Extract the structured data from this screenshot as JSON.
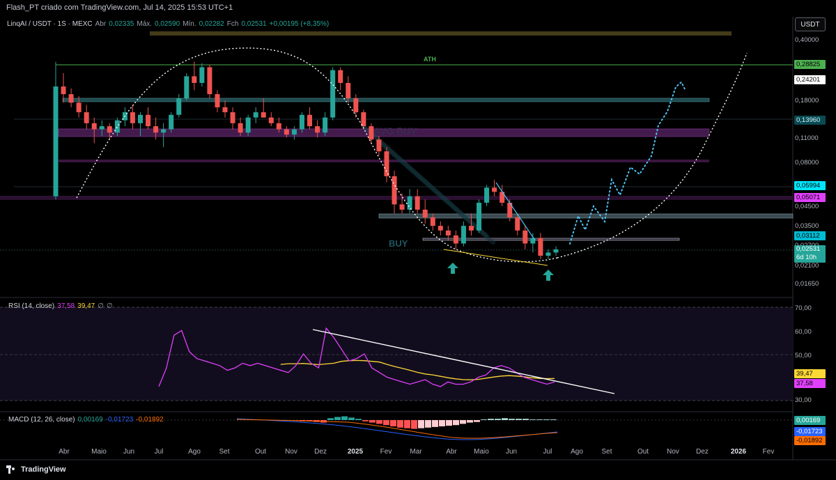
{
  "header": {
    "title": "Flash_PT criado com TradingView.com, Jul 14, 2025 15:53 UTC+1"
  },
  "legend": {
    "symbol": "LinqAI / USDT · 1S · MEXC",
    "open_label": "Abr",
    "open_value": "0,02335",
    "high_label": "Máx.",
    "high_value": "0,02590",
    "low_label": "Mín.",
    "low_value": "0,02282",
    "close_label": "Fch",
    "close_value": "0,02531",
    "change": "+0,00195 (+8,35%)"
  },
  "currency_button": "USDT",
  "price_axis": [
    "0,40000",
    "0,18000",
    "0,11000",
    "0,08000",
    "0,04500",
    "0,03500",
    "0,02700",
    "0,02100",
    "0,01650"
  ],
  "price_tags": {
    "ath": "0,28825",
    "t1": "0,24201",
    "t2": "0,13960",
    "t3": "0,05994",
    "t4": "0,05071",
    "t5": "0,03112",
    "current": "0,02531",
    "countdown": "6d 10h"
  },
  "annotations": {
    "ath": "ATH",
    "buy": "BUY",
    "avg_buy": "AVG BUY"
  },
  "rsi": {
    "label": "RSI (14, close)",
    "v1": "37,58",
    "v2": "39,47",
    "v3": "∅",
    "v4": "∅",
    "axis": [
      "70,00",
      "60,00",
      "50,00",
      "30,00"
    ],
    "tag_ma": "39,47",
    "tag_rsi": "37,58"
  },
  "macd": {
    "label": "MACD (12, 26, close)",
    "hist": "0,00169",
    "macd": "-0,01723",
    "signal": "-0,01892",
    "tag_hist": "0,00169",
    "tag_macd": "-0,01723",
    "tag_signal": "-0,01892"
  },
  "time_axis": [
    "Abr",
    "Maio",
    "Jun",
    "Jul",
    "Ago",
    "Set",
    "Out",
    "Nov",
    "Dez",
    "2025",
    "Fev",
    "Mar",
    "Abr",
    "Maio",
    "Jun",
    "Jul",
    "Ago",
    "Set",
    "Out",
    "Nov",
    "Dez",
    "2026",
    "Fev"
  ],
  "footer": {
    "brand": "TradingView"
  },
  "colors": {
    "up": "#26a69a",
    "down": "#ef5350",
    "rsi": "#e040fb",
    "rsi_ma": "#fdd835",
    "macd": "#2962ff",
    "signal": "#ff6d00",
    "ath_line": "#4caf50"
  },
  "candles": [
    {
      "o": 0.05,
      "h": 0.29,
      "l": 0.048,
      "c": 0.21
    },
    {
      "o": 0.21,
      "h": 0.25,
      "l": 0.17,
      "c": 0.19
    },
    {
      "o": 0.19,
      "h": 0.205,
      "l": 0.16,
      "c": 0.17
    },
    {
      "o": 0.17,
      "h": 0.185,
      "l": 0.14,
      "c": 0.15
    },
    {
      "o": 0.15,
      "h": 0.165,
      "l": 0.12,
      "c": 0.13
    },
    {
      "o": 0.13,
      "h": 0.14,
      "l": 0.1,
      "c": 0.12
    },
    {
      "o": 0.12,
      "h": 0.135,
      "l": 0.11,
      "c": 0.125
    },
    {
      "o": 0.125,
      "h": 0.13,
      "l": 0.105,
      "c": 0.115
    },
    {
      "o": 0.115,
      "h": 0.14,
      "l": 0.11,
      "c": 0.135
    },
    {
      "o": 0.135,
      "h": 0.16,
      "l": 0.125,
      "c": 0.15
    },
    {
      "o": 0.15,
      "h": 0.165,
      "l": 0.12,
      "c": 0.13
    },
    {
      "o": 0.13,
      "h": 0.15,
      "l": 0.11,
      "c": 0.145
    },
    {
      "o": 0.145,
      "h": 0.16,
      "l": 0.12,
      "c": 0.125
    },
    {
      "o": 0.125,
      "h": 0.14,
      "l": 0.105,
      "c": 0.115
    },
    {
      "o": 0.115,
      "h": 0.13,
      "l": 0.095,
      "c": 0.12
    },
    {
      "o": 0.12,
      "h": 0.15,
      "l": 0.115,
      "c": 0.145
    },
    {
      "o": 0.145,
      "h": 0.19,
      "l": 0.14,
      "c": 0.18
    },
    {
      "o": 0.18,
      "h": 0.25,
      "l": 0.175,
      "c": 0.24
    },
    {
      "o": 0.24,
      "h": 0.29,
      "l": 0.2,
      "c": 0.22
    },
    {
      "o": 0.22,
      "h": 0.285,
      "l": 0.21,
      "c": 0.27
    },
    {
      "o": 0.27,
      "h": 0.28,
      "l": 0.18,
      "c": 0.19
    },
    {
      "o": 0.19,
      "h": 0.2,
      "l": 0.15,
      "c": 0.16
    },
    {
      "o": 0.16,
      "h": 0.175,
      "l": 0.14,
      "c": 0.15
    },
    {
      "o": 0.15,
      "h": 0.16,
      "l": 0.12,
      "c": 0.13
    },
    {
      "o": 0.13,
      "h": 0.14,
      "l": 0.11,
      "c": 0.115
    },
    {
      "o": 0.115,
      "h": 0.145,
      "l": 0.11,
      "c": 0.14
    },
    {
      "o": 0.14,
      "h": 0.16,
      "l": 0.13,
      "c": 0.15
    },
    {
      "o": 0.15,
      "h": 0.18,
      "l": 0.14,
      "c": 0.14
    },
    {
      "o": 0.14,
      "h": 0.15,
      "l": 0.125,
      "c": 0.13
    },
    {
      "o": 0.13,
      "h": 0.14,
      "l": 0.115,
      "c": 0.12
    },
    {
      "o": 0.12,
      "h": 0.125,
      "l": 0.108,
      "c": 0.112
    },
    {
      "o": 0.112,
      "h": 0.125,
      "l": 0.105,
      "c": 0.12
    },
    {
      "o": 0.12,
      "h": 0.15,
      "l": 0.115,
      "c": 0.145
    },
    {
      "o": 0.145,
      "h": 0.16,
      "l": 0.12,
      "c": 0.125
    },
    {
      "o": 0.125,
      "h": 0.135,
      "l": 0.108,
      "c": 0.115
    },
    {
      "o": 0.115,
      "h": 0.15,
      "l": 0.11,
      "c": 0.14
    },
    {
      "o": 0.14,
      "h": 0.27,
      "l": 0.135,
      "c": 0.26
    },
    {
      "o": 0.26,
      "h": 0.27,
      "l": 0.2,
      "c": 0.22
    },
    {
      "o": 0.22,
      "h": 0.24,
      "l": 0.17,
      "c": 0.18
    },
    {
      "o": 0.18,
      "h": 0.19,
      "l": 0.14,
      "c": 0.15
    },
    {
      "o": 0.15,
      "h": 0.155,
      "l": 0.12,
      "c": 0.125
    },
    {
      "o": 0.125,
      "h": 0.13,
      "l": 0.1,
      "c": 0.105
    },
    {
      "o": 0.105,
      "h": 0.11,
      "l": 0.085,
      "c": 0.09
    },
    {
      "o": 0.09,
      "h": 0.095,
      "l": 0.06,
      "c": 0.065
    },
    {
      "o": 0.065,
      "h": 0.07,
      "l": 0.04,
      "c": 0.045
    },
    {
      "o": 0.045,
      "h": 0.052,
      "l": 0.04,
      "c": 0.042
    },
    {
      "o": 0.042,
      "h": 0.055,
      "l": 0.04,
      "c": 0.05
    },
    {
      "o": 0.05,
      "h": 0.055,
      "l": 0.04,
      "c": 0.042
    },
    {
      "o": 0.042,
      "h": 0.048,
      "l": 0.035,
      "c": 0.038
    },
    {
      "o": 0.038,
      "h": 0.04,
      "l": 0.032,
      "c": 0.034
    },
    {
      "o": 0.034,
      "h": 0.036,
      "l": 0.03,
      "c": 0.032
    },
    {
      "o": 0.032,
      "h": 0.034,
      "l": 0.028,
      "c": 0.03
    },
    {
      "o": 0.03,
      "h": 0.032,
      "l": 0.025,
      "c": 0.027
    },
    {
      "o": 0.027,
      "h": 0.036,
      "l": 0.026,
      "c": 0.034
    },
    {
      "o": 0.034,
      "h": 0.04,
      "l": 0.03,
      "c": 0.032
    },
    {
      "o": 0.032,
      "h": 0.048,
      "l": 0.031,
      "c": 0.046
    },
    {
      "o": 0.046,
      "h": 0.058,
      "l": 0.044,
      "c": 0.056
    },
    {
      "o": 0.056,
      "h": 0.062,
      "l": 0.05,
      "c": 0.053
    },
    {
      "o": 0.053,
      "h": 0.058,
      "l": 0.044,
      "c": 0.046
    },
    {
      "o": 0.046,
      "h": 0.048,
      "l": 0.036,
      "c": 0.038
    },
    {
      "o": 0.038,
      "h": 0.04,
      "l": 0.03,
      "c": 0.032
    },
    {
      "o": 0.032,
      "h": 0.034,
      "l": 0.025,
      "c": 0.027
    },
    {
      "o": 0.027,
      "h": 0.031,
      "l": 0.024,
      "c": 0.029
    },
    {
      "o": 0.029,
      "h": 0.031,
      "l": 0.022,
      "c": 0.023
    },
    {
      "o": 0.023,
      "h": 0.025,
      "l": 0.022,
      "c": 0.024
    },
    {
      "o": 0.024,
      "h": 0.026,
      "l": 0.023,
      "c": 0.025
    }
  ],
  "rsi_series": [
    36,
    44,
    58,
    60,
    51,
    48,
    47,
    46,
    45,
    43,
    44,
    46,
    45,
    46,
    45,
    44,
    43,
    42,
    45,
    50,
    46,
    44,
    61,
    57,
    52,
    47,
    48,
    50,
    44,
    42,
    40,
    39,
    38,
    37,
    38,
    39,
    37,
    36,
    38,
    37,
    37,
    38,
    40,
    41,
    44,
    45,
    44,
    42,
    40,
    39,
    38,
    37,
    38
  ],
  "rsi_ma_series": [
    null,
    null,
    null,
    null,
    null,
    null,
    null,
    null,
    null,
    null,
    null,
    null,
    null,
    null,
    null,
    null,
    45.5,
    45.8,
    45.8,
    45.9,
    45.6,
    45.4,
    45.7,
    46.0,
    46.8,
    47.1,
    47.2,
    47.1,
    46.8,
    46.5,
    45.5,
    44.6,
    43.8,
    43.0,
    42.1,
    41.4,
    41.0,
    40.4,
    39.8,
    39.3,
    39.0,
    38.9,
    39.1,
    39.6,
    40.1,
    40.5,
    40.7,
    40.5,
    40.2,
    39.8,
    39.5,
    39.4,
    39.47
  ]
}
